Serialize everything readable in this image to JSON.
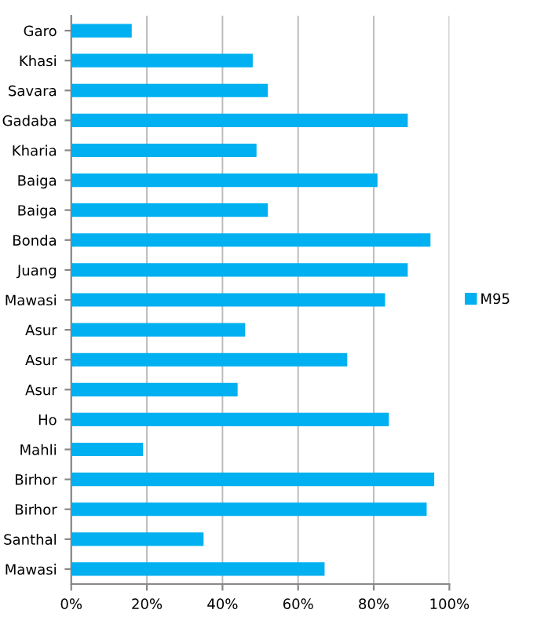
{
  "chart_data": {
    "type": "bar",
    "orientation": "horizontal",
    "categories": [
      "Garo",
      "Khasi",
      "Savara",
      "Gadaba",
      "Kharia",
      "Baiga",
      "Baiga",
      "Bonda",
      "Juang",
      "Mawasi",
      "Asur",
      "Asur",
      "Asur",
      "Ho",
      "Mahli",
      "Birhor",
      "Birhor",
      "Santhal",
      "Mawasi"
    ],
    "series": [
      {
        "name": "M95",
        "color": "#00b0f0",
        "values": [
          16,
          48,
          52,
          89,
          49,
          81,
          52,
          95,
          89,
          83,
          46,
          73,
          44,
          84,
          19,
          96,
          94,
          35,
          67
        ]
      }
    ],
    "xlim": [
      0,
      100
    ],
    "xticks": [
      {
        "value": 0,
        "label": "0%"
      },
      {
        "value": 20,
        "label": "20%"
      },
      {
        "value": 40,
        "label": "40%"
      },
      {
        "value": 60,
        "label": "60%"
      },
      {
        "value": 80,
        "label": "80%"
      },
      {
        "value": 100,
        "label": "100%"
      }
    ],
    "grid": "x",
    "legend": "right"
  }
}
